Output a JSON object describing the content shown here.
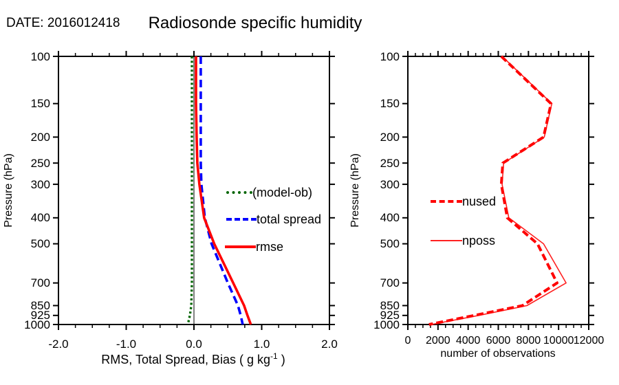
{
  "header": {
    "date_label": "DATE: 2016012418",
    "title": "Radiosonde specific humidity"
  },
  "left_panel": {
    "xlabel_parts": {
      "main": "RMS, Total Spread, Bias ( g kg",
      "sup": "-1",
      "end": " )"
    }
  },
  "chart_data": [
    {
      "type": "line",
      "panel": "left",
      "title": "Radiosonde specific humidity",
      "xlabel": "RMS, Total Spread, Bias ( g kg⁻¹ )",
      "ylabel": "Pressure (hPa)",
      "x_axis": {
        "range": [
          -2.0,
          2.0
        ],
        "major_ticks": [
          -2,
          -1,
          0,
          1,
          2
        ],
        "tick_labels": [
          "-2.0",
          "-1.0",
          "0.0",
          "1.0",
          "2.0"
        ],
        "minor_step": 0.25
      },
      "y_axis": {
        "scale": "log",
        "range": [
          100,
          1000
        ],
        "direction": "inverted",
        "ticks": [
          100,
          150,
          200,
          250,
          300,
          400,
          500,
          700,
          850,
          925,
          1000
        ],
        "tick_labels": [
          "100",
          "150",
          "200",
          "250",
          "300",
          "400",
          "500",
          "700",
          "850",
          "925",
          "1000"
        ]
      },
      "zero_line": true,
      "legend_position": "middle-right",
      "pressure_levels": [
        100,
        150,
        200,
        250,
        300,
        400,
        500,
        700,
        850,
        925,
        1000
      ],
      "series": [
        {
          "name": "(model-ob)",
          "color": "#006400",
          "style": "dotted",
          "values": [
            -0.03,
            -0.03,
            -0.03,
            -0.03,
            -0.03,
            -0.03,
            -0.03,
            -0.03,
            -0.04,
            -0.06,
            -0.09
          ]
        },
        {
          "name": "total spread",
          "color": "#0000ff",
          "style": "dashed",
          "values": [
            0.1,
            0.1,
            0.1,
            0.1,
            0.11,
            0.16,
            0.26,
            0.5,
            0.65,
            0.69,
            0.72
          ]
        },
        {
          "name": "rmse",
          "color": "#ff0000",
          "style": "solid",
          "values": [
            0.03,
            0.03,
            0.04,
            0.05,
            0.08,
            0.15,
            0.3,
            0.58,
            0.74,
            0.79,
            0.84
          ]
        }
      ]
    },
    {
      "type": "line",
      "panel": "right",
      "xlabel": "number of observations",
      "ylabel": "Pressure (hPa)",
      "x_axis": {
        "range": [
          0,
          12000
        ],
        "major_ticks": [
          0,
          2000,
          4000,
          6000,
          8000,
          10000,
          12000
        ],
        "tick_labels": [
          "0",
          "2000",
          "4000",
          "6000",
          "8000",
          "10000",
          "12000"
        ],
        "minor_step": 500
      },
      "y_axis": {
        "scale": "log",
        "range": [
          100,
          1000
        ],
        "direction": "inverted",
        "ticks": [
          100,
          150,
          200,
          250,
          300,
          400,
          500,
          700,
          850,
          925,
          1000
        ],
        "tick_labels": [
          "100",
          "150",
          "200",
          "250",
          "300",
          "400",
          "500",
          "700",
          "850",
          "925",
          "1000"
        ]
      },
      "zero_line": false,
      "legend_position": "middle-left",
      "pressure_levels": [
        100,
        150,
        200,
        250,
        300,
        400,
        500,
        700,
        850,
        925,
        1000
      ],
      "series": [
        {
          "name": "nposs",
          "color": "#ff2020",
          "style": "thin-solid",
          "values": [
            6250,
            9550,
            9050,
            6350,
            6250,
            6700,
            9000,
            10500,
            7900,
            4700,
            1550
          ]
        },
        {
          "name": "nused",
          "color": "#ff0000",
          "style": "thick-dashed",
          "values": [
            6200,
            9500,
            9000,
            6300,
            6200,
            6600,
            8600,
            9900,
            7600,
            4400,
            1400
          ]
        }
      ]
    }
  ]
}
